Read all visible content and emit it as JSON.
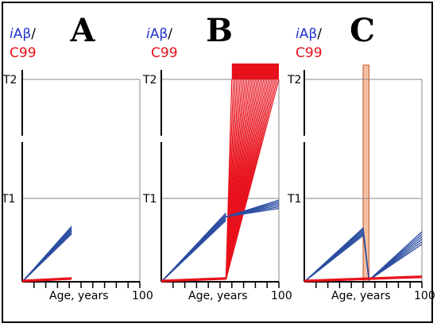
{
  "panels": [
    {
      "letter": "A",
      "ylabel": {
        "prefix": "i",
        "main": "Aβ",
        "slash": "/",
        "c_letter": "C",
        "c_num": "99"
      },
      "t2": "T2",
      "t1": "T1",
      "x_label": "Age, years",
      "x_max": "100",
      "blue_lines": [
        {
          "x0": 0,
          "y0": 0,
          "x1": 42,
          "y1": 0.62
        }
      ],
      "red_lines": [
        {
          "x0": 0,
          "y0": 0,
          "x1": 42,
          "y1": 0.03
        }
      ]
    },
    {
      "letter": "B",
      "ylabel": {
        "prefix": "i",
        "main": "Aβ",
        "slash": "/",
        "c_letter": "C",
        "c_num": "99"
      },
      "t2": "T2",
      "t1": "T1",
      "x_label": "Age, years",
      "x_max": "100",
      "blue_lines": [
        {
          "x0": 0,
          "y0": 0,
          "x1": 55,
          "y1": 0.78
        }
      ],
      "red_lines": [
        {
          "x0": 0,
          "y0": 0,
          "x1": 55,
          "y1": 0.03
        }
      ],
      "red_fan": {
        "from_x": 55,
        "from_y": 0.03,
        "top_x_min": 60,
        "top_x_max": 100,
        "top_y": 1.9
      }
    },
    {
      "letter": "C",
      "ylabel": {
        "prefix": "i",
        "main": "Aβ",
        "slash": "/",
        "c_letter": "C",
        "c_num": "99"
      },
      "t2": "T2",
      "t1": "T1",
      "x_label": "Age, years",
      "x_max": "100",
      "blue_lines": [
        {
          "x0": 0,
          "y0": 0,
          "x1": 50,
          "y1": 0.6
        }
      ],
      "red_lines": [
        {
          "x0": 0,
          "y0": 0,
          "x1": 100,
          "y1": 0.05
        }
      ],
      "treatment_band": {
        "x_start": 50,
        "x_end": 55,
        "color": "#f5c0a0"
      }
    }
  ],
  "colors": {
    "blue": "#2b4da0",
    "red": "#e8111b",
    "band": "#f5c0a0",
    "ylabel_blue": "#2233cc"
  }
}
